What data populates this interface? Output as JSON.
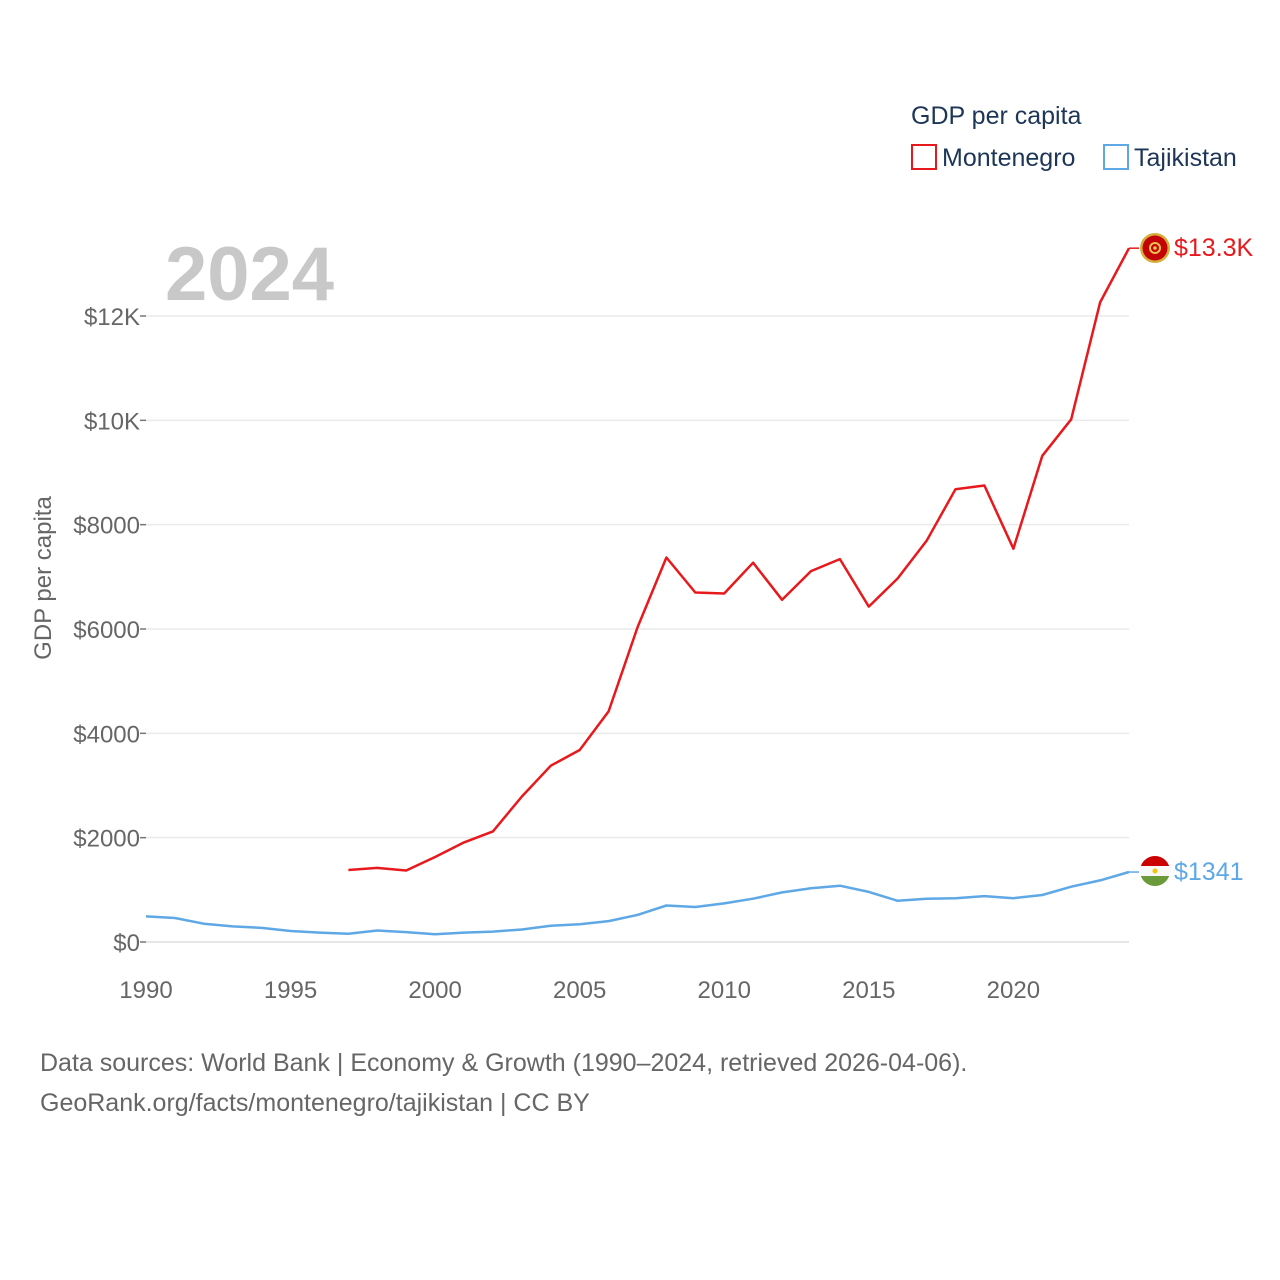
{
  "chart_data": {
    "type": "line",
    "title": "GDP per capita",
    "ylabel": "GDP per capita",
    "xlabel": "",
    "year_label": "2024",
    "xlim": [
      1990,
      2024
    ],
    "ylim": [
      0,
      13300
    ],
    "x_ticks": [
      1990,
      1995,
      2000,
      2005,
      2010,
      2015,
      2020
    ],
    "x_tick_labels": [
      "1990",
      "1995",
      "2000",
      "2005",
      "2010",
      "2015",
      "2020"
    ],
    "y_ticks": [
      0,
      2000,
      4000,
      6000,
      8000,
      10000,
      12000
    ],
    "y_tick_labels": [
      "$0",
      "$2000",
      "$4000",
      "$6000",
      "$8000",
      "$10K",
      "$12K"
    ],
    "grid": true,
    "legend": {
      "title": "GDP per capita",
      "placement": "top-right",
      "entries": [
        "Montenegro",
        "Tajikistan"
      ]
    },
    "series": [
      {
        "name": "Montenegro",
        "color": "#e8191c",
        "end_label": "$13.3K",
        "flag_icon": "montenegro-flag-icon",
        "x": [
          1997,
          1998,
          1999,
          2000,
          2001,
          2002,
          2003,
          2004,
          2005,
          2006,
          2007,
          2008,
          2009,
          2010,
          2011,
          2012,
          2013,
          2014,
          2015,
          2016,
          2017,
          2018,
          2019,
          2020,
          2021,
          2022,
          2023,
          2024
        ],
        "values": [
          1380,
          1420,
          1370,
          1630,
          1910,
          2120,
          2790,
          3380,
          3680,
          4420,
          6030,
          7370,
          6700,
          6680,
          7270,
          6560,
          7110,
          7340,
          6430,
          6970,
          7690,
          8680,
          8750,
          7540,
          9320,
          10020,
          12260,
          13300
        ]
      },
      {
        "name": "Tajikistan",
        "color": "#5ea8e6",
        "end_label": "$1341",
        "flag_icon": "tajikistan-flag-icon",
        "x": [
          1990,
          1991,
          1992,
          1993,
          1994,
          1995,
          1996,
          1997,
          1998,
          1999,
          2000,
          2001,
          2002,
          2003,
          2004,
          2005,
          2006,
          2007,
          2008,
          2009,
          2010,
          2011,
          2012,
          2013,
          2014,
          2015,
          2016,
          2017,
          2018,
          2019,
          2020,
          2021,
          2022,
          2023,
          2024
        ],
        "values": [
          490,
          460,
          350,
          300,
          270,
          210,
          180,
          160,
          220,
          190,
          150,
          180,
          200,
          240,
          310,
          340,
          400,
          520,
          700,
          670,
          740,
          830,
          950,
          1030,
          1080,
          960,
          790,
          830,
          840,
          880,
          840,
          900,
          1060,
          1180,
          1341
        ]
      }
    ]
  },
  "footer": {
    "line1": "Data sources: World Bank | Economy & Growth (1990–2024, retrieved 2026-04-06).",
    "line2": "GeoRank.org/facts/montenegro/tajikistan | CC BY"
  }
}
